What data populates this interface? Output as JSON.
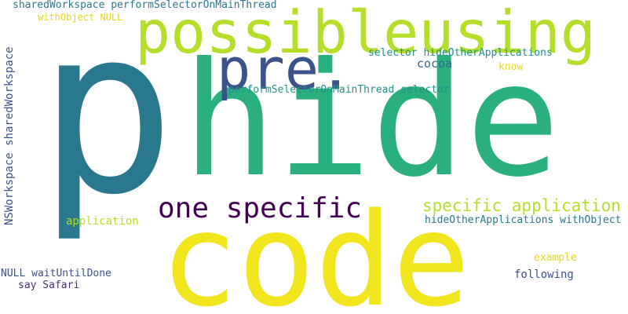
{
  "words": [
    {
      "text": "p",
      "color": "#2a788e"
    },
    {
      "text": "hide",
      "color": "#2ab07f"
    },
    {
      "text": "code",
      "color": "#f1e51d"
    },
    {
      "text": "possibleusing",
      "color": "#b5de2b"
    },
    {
      "text": "pre.",
      "color": "#3b528b"
    },
    {
      "text": "one specific",
      "color": "#440154"
    },
    {
      "text": "specific application",
      "color": "#b5de2b"
    },
    {
      "text": "sharedWorkspace performSelectorOnMainThread",
      "color": "#2a788e"
    },
    {
      "text": "NSWorkspace sharedWorkspace",
      "color": "#3b528b"
    },
    {
      "text": "withObject NULL",
      "color": "#e8d81b"
    },
    {
      "text": "selector hideOtherApplications",
      "color": "#21918c"
    },
    {
      "text": "cocoa",
      "color": "#31688e"
    },
    {
      "text": "know",
      "color": "#e8d81b"
    },
    {
      "text": "performSelectorOnMainThread selector",
      "color": "#21918c"
    },
    {
      "text": "application",
      "color": "#b5de2b"
    },
    {
      "text": "hideOtherApplications withObject",
      "color": "#2a788e"
    },
    {
      "text": "example",
      "color": "#e8d81b"
    },
    {
      "text": "following",
      "color": "#3b528b"
    },
    {
      "text": "NULL waitUntilDone",
      "color": "#3b528b"
    },
    {
      "text": "say Safari",
      "color": "#472c7a"
    }
  ]
}
